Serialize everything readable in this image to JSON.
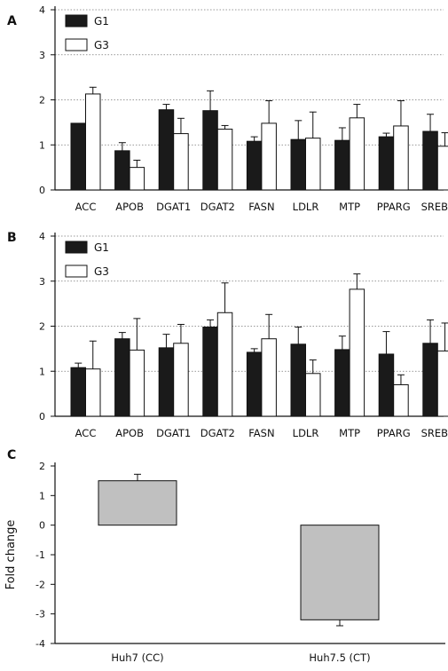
{
  "chart_data": [
    {
      "panel": "A",
      "type": "bar",
      "categories": [
        "ACC",
        "APOB",
        "DGAT1",
        "DGAT2",
        "FASN",
        "LDLR",
        "MTP",
        "PPARG",
        "SREBP"
      ],
      "ylim": [
        0,
        4
      ],
      "yticks": [
        0,
        1,
        2,
        3,
        4
      ],
      "grid": true,
      "legend_position": "top-left",
      "series": [
        {
          "name": "G1",
          "color": "#1a1a1a",
          "values": [
            1.48,
            0.87,
            1.78,
            1.76,
            1.08,
            1.12,
            1.1,
            1.18,
            1.3
          ],
          "errors": [
            0.0,
            0.18,
            0.12,
            0.44,
            0.1,
            0.42,
            0.28,
            0.08,
            0.38
          ]
        },
        {
          "name": "G3",
          "color": "#ffffff",
          "values": [
            2.13,
            0.5,
            1.25,
            1.35,
            1.48,
            1.15,
            1.6,
            1.42,
            0.97
          ],
          "errors": [
            0.15,
            0.16,
            0.34,
            0.08,
            0.5,
            0.58,
            0.3,
            0.56,
            0.3
          ]
        }
      ],
      "xlabel": "",
      "ylabel": ""
    },
    {
      "panel": "B",
      "type": "bar",
      "categories": [
        "ACC",
        "APOB",
        "DGAT1",
        "DGAT2",
        "FASN",
        "LDLR",
        "MTP",
        "PPARG",
        "SREBP"
      ],
      "ylim": [
        0,
        4
      ],
      "yticks": [
        0,
        1,
        2,
        3,
        4
      ],
      "grid": true,
      "legend_position": "top-left",
      "series": [
        {
          "name": "G1",
          "color": "#1a1a1a",
          "values": [
            1.08,
            1.72,
            1.52,
            1.98,
            1.42,
            1.6,
            1.48,
            1.38,
            1.62
          ],
          "errors": [
            0.1,
            0.14,
            0.3,
            0.16,
            0.08,
            0.38,
            0.3,
            0.5,
            0.52
          ]
        },
        {
          "name": "G3",
          "color": "#ffffff",
          "values": [
            1.05,
            1.47,
            1.62,
            2.3,
            1.72,
            0.95,
            2.82,
            0.7,
            1.45
          ],
          "errors": [
            0.62,
            0.7,
            0.42,
            0.66,
            0.54,
            0.3,
            0.34,
            0.22,
            0.62
          ]
        }
      ],
      "xlabel": "",
      "ylabel": ""
    },
    {
      "panel": "C",
      "type": "bar",
      "categories": [
        "Huh7 (CC)",
        "Huh7.5 (CT)"
      ],
      "ylim": [
        -4,
        2
      ],
      "yticks": [
        -4,
        -3,
        -2,
        -1,
        0,
        1,
        2
      ],
      "grid": false,
      "series": [
        {
          "color": "#c0c0c0",
          "values": [
            1.5,
            -3.2
          ],
          "errors": [
            0.22,
            0.2
          ]
        }
      ],
      "xlabel": "",
      "ylabel": "Fold change"
    }
  ]
}
